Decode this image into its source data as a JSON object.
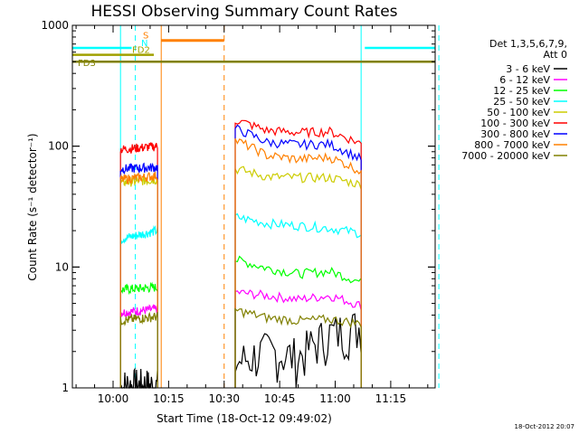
{
  "chart_data": {
    "type": "line",
    "title": "HESSI Observing Summary Count Rates",
    "xlabel": "Start Time (18-Oct-12 09:49:02)",
    "ylabel": "Count Rate (s⁻¹ detector⁻¹)",
    "yscale": "log",
    "ylim": [
      1,
      1000
    ],
    "xlim": [
      "09:49",
      "11:27"
    ],
    "x_ticks": [
      "10:00",
      "10:15",
      "10:30",
      "10:45",
      "11:00",
      "11:15"
    ],
    "y_ticks": [
      "1",
      "10",
      "100",
      "1000"
    ],
    "grid": false,
    "legend_position": "right",
    "legend_header": [
      "Det 1,3,5,6,7,9,",
      "Att 0"
    ],
    "footer": "18-Oct-2012 20:07",
    "segments": [
      {
        "start": "10:02",
        "end": "10:12"
      },
      {
        "start": "10:33",
        "end": "11:07"
      }
    ],
    "series": [
      {
        "name": "3 - 6 keV",
        "color": "#000000",
        "segment_values": [
          [
            1,
            1
          ],
          [
            1.6,
            2.0,
            1.8,
            2.8,
            3.2
          ]
        ]
      },
      {
        "name": "6 - 12 keV",
        "color": "#ff00ff",
        "segment_values": [
          [
            4.2,
            4.5
          ],
          [
            6.2,
            5.8,
            5.4,
            5.8,
            4.8
          ]
        ]
      },
      {
        "name": "12 - 25 keV",
        "color": "#00ff00",
        "segment_values": [
          [
            6.5,
            6.8
          ],
          [
            11.5,
            9.8,
            8.8,
            9.2,
            7.5
          ]
        ]
      },
      {
        "name": "25 - 50 keV",
        "color": "#00ffff",
        "segment_values": [
          [
            17,
            20
          ],
          [
            26,
            23,
            22,
            21,
            19
          ]
        ]
      },
      {
        "name": "50 - 100 keV",
        "color": "#cccc00",
        "segment_values": [
          [
            50,
            53
          ],
          [
            65,
            56,
            55,
            55,
            48
          ]
        ]
      },
      {
        "name": "100 - 300 keV",
        "color": "#ff0000",
        "segment_values": [
          [
            94,
            100
          ],
          [
            165,
            135,
            130,
            132,
            105
          ]
        ]
      },
      {
        "name": "300 - 800 keV",
        "color": "#0000ff",
        "segment_values": [
          [
            65,
            67
          ],
          [
            140,
            108,
            103,
            104,
            78
          ]
        ]
      },
      {
        "name": "800 - 7000 keV",
        "color": "#ff8000",
        "segment_values": [
          [
            53,
            57
          ],
          [
            112,
            84,
            78,
            81,
            62
          ]
        ]
      },
      {
        "name": "7000 - 20000 keV",
        "color": "#808000",
        "segment_values": [
          [
            3.6,
            3.9
          ],
          [
            4.4,
            3.8,
            3.6,
            3.7,
            3.4
          ]
        ]
      }
    ],
    "flag_bars": [
      {
        "label": "S",
        "color": "#ff8000",
        "value": 750,
        "start": "10:13",
        "end": "10:30"
      },
      {
        "label": "N",
        "color": "#00ffff",
        "value": 650,
        "start": "09:49",
        "end": "10:05",
        "start2": "11:08",
        "end2": "11:27"
      },
      {
        "label": "FD2",
        "color": "#a0a000",
        "value": 570,
        "start": "09:49",
        "end": "10:11"
      },
      {
        "label": "FD3",
        "color": "#808000",
        "value": 500,
        "start": "09:49",
        "end": "11:27"
      }
    ],
    "vlines": [
      {
        "x": "10:02",
        "color": "#00ffff",
        "style": "solid"
      },
      {
        "x": "10:06",
        "color": "#00ffff",
        "style": "dashed"
      },
      {
        "x": "10:13",
        "color": "#ff8000",
        "style": "solid"
      },
      {
        "x": "10:30",
        "color": "#ff8000",
        "style": "dashed"
      },
      {
        "x": "11:07",
        "color": "#00ffff",
        "style": "solid"
      },
      {
        "x": "11:28",
        "color": "#00ffff",
        "style": "dashed"
      }
    ]
  }
}
